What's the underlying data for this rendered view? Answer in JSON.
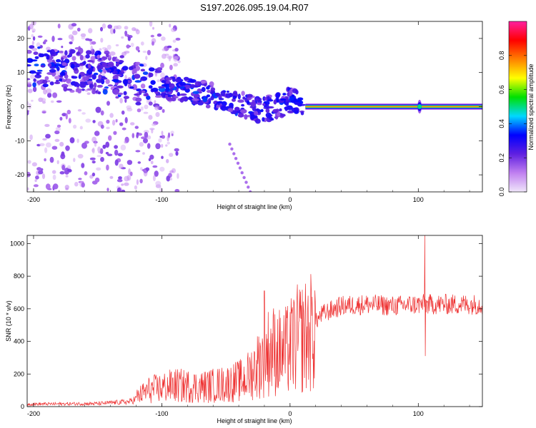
{
  "title": "S197.2026.095.19.04.R07",
  "chart_data": [
    {
      "type": "heatmap",
      "xlabel": "Height of straight line (km)",
      "ylabel": "Frequency (Hz)",
      "xlim": [
        -205,
        150
      ],
      "ylim": [
        -25,
        25
      ],
      "xticks": [
        -200,
        -100,
        0,
        100
      ],
      "yticks": [
        -20,
        -10,
        0,
        10,
        20
      ],
      "colorbar": {
        "label": "Normalized spectral amplitude",
        "range": [
          0,
          1
        ],
        "ticks": [
          "0.0",
          "0.2",
          "0.4",
          "0.6",
          "0.8"
        ],
        "tick_values": [
          0,
          0.2,
          0.4,
          0.6,
          0.8
        ],
        "colors": [
          "#f0e6fa",
          "#c080f0",
          "#6020e0",
          "#0000ff",
          "#00d8ff",
          "#00e000",
          "#ffff00",
          "#ff8000",
          "#ff0000",
          "#ff20a0"
        ]
      },
      "tone_line": {
        "freq": 0,
        "x_start": 12,
        "x_end": 150,
        "amplitude": 0.85
      },
      "ridge": [
        {
          "x": -200,
          "f": 12
        },
        {
          "x": -180,
          "f": 11
        },
        {
          "x": -160,
          "f": 10
        },
        {
          "x": -140,
          "f": 10
        },
        {
          "x": -120,
          "f": 7
        },
        {
          "x": -100,
          "f": 5
        },
        {
          "x": -80,
          "f": 5
        },
        {
          "x": -60,
          "f": 3
        },
        {
          "x": -40,
          "f": 1
        },
        {
          "x": -25,
          "f": -1
        },
        {
          "x": -10,
          "f": 0
        },
        {
          "x": 0,
          "f": 2
        },
        {
          "x": 10,
          "f": 0.5
        }
      ]
    },
    {
      "type": "line",
      "xlabel": "Height of straight line (km)",
      "ylabel": "SNR (10 * v/v)",
      "xlim": [
        -205,
        150
      ],
      "ylim": [
        0,
        1050
      ],
      "xticks": [
        -200,
        -100,
        0,
        100
      ],
      "yticks": [
        0,
        200,
        400,
        600,
        800,
        1000
      ],
      "color": "#ee3333",
      "envelope": [
        {
          "x": -205,
          "y": 20
        },
        {
          "x": -150,
          "y": 25
        },
        {
          "x": -125,
          "y": 40
        },
        {
          "x": -110,
          "y": 110
        },
        {
          "x": -90,
          "y": 140
        },
        {
          "x": -70,
          "y": 130
        },
        {
          "x": -50,
          "y": 150
        },
        {
          "x": -35,
          "y": 180
        },
        {
          "x": -25,
          "y": 280
        },
        {
          "x": -15,
          "y": 380
        },
        {
          "x": -5,
          "y": 350
        },
        {
          "x": 5,
          "y": 440
        },
        {
          "x": 15,
          "y": 480
        },
        {
          "x": 25,
          "y": 580
        },
        {
          "x": 40,
          "y": 630
        },
        {
          "x": 60,
          "y": 640
        },
        {
          "x": 80,
          "y": 630
        },
        {
          "x": 100,
          "y": 640
        },
        {
          "x": 120,
          "y": 640
        },
        {
          "x": 150,
          "y": 640
        }
      ],
      "spikes": [
        {
          "x": -20,
          "y": 710
        },
        {
          "x": -17,
          "y": 580
        },
        {
          "x": 0,
          "y": 580
        },
        {
          "x": 105,
          "y": 1050
        },
        {
          "x": 105.5,
          "y": 310
        }
      ]
    }
  ]
}
